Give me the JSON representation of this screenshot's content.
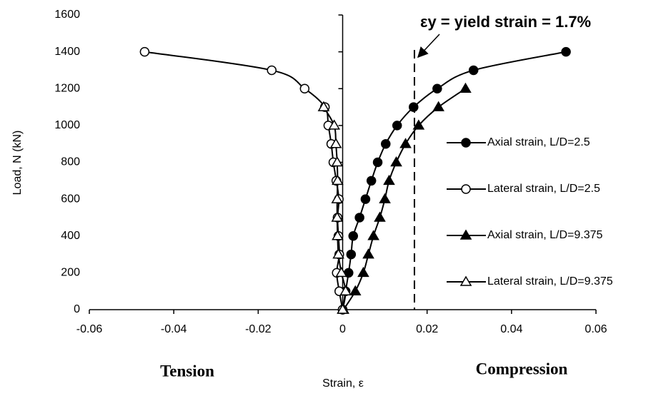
{
  "chart_data": {
    "type": "line",
    "x_label": "Strain, ε",
    "y_label": "Load, N (kN)",
    "annotation": "εy = yield strain = 1.7%",
    "yield_strain": 0.017,
    "left_label": "Tension",
    "right_label": "Compression",
    "xlim": [
      -0.06,
      0.06
    ],
    "xticks": [
      -0.06,
      -0.04,
      -0.02,
      0,
      0.02,
      0.04,
      0.06
    ],
    "ylim": [
      0,
      1600
    ],
    "yticks": [
      0,
      200,
      400,
      600,
      800,
      1000,
      1200,
      1400,
      1600
    ],
    "legend": "right",
    "series": [
      {
        "name": "Axial strain, L/D=2.5",
        "color": "#000000",
        "marker": "circle",
        "filled": true,
        "x": [
          0,
          0.0007,
          0.0014,
          0.002,
          0.0025,
          0.004,
          0.0054,
          0.0068,
          0.0083,
          0.0102,
          0.0129,
          0.0168,
          0.0224,
          0.031,
          0.0529
        ],
        "values": [
          0,
          100,
          200,
          300,
          400,
          500,
          600,
          700,
          800,
          900,
          1000,
          1100,
          1200,
          1300,
          1400
        ]
      },
      {
        "name": "Lateral strain, L/D=2.5",
        "color": "#000000",
        "marker": "circle",
        "filled": false,
        "x": [
          0,
          -0.0008,
          -0.0014,
          -0.0008,
          -0.001,
          -0.0012,
          -0.0009,
          -0.0015,
          -0.0022,
          -0.0027,
          -0.0034,
          -0.0042,
          -0.009,
          -0.0168,
          -0.0469
        ],
        "values": [
          0,
          100,
          200,
          300,
          400,
          500,
          600,
          700,
          800,
          900,
          1000,
          1100,
          1200,
          1300,
          1400
        ]
      },
      {
        "name": "Axial strain, L/D=9.375",
        "color": "#000000",
        "marker": "triangle",
        "filled": true,
        "x": [
          0.0002,
          0.003,
          0.0049,
          0.0061,
          0.0073,
          0.0088,
          0.01,
          0.011,
          0.0127,
          0.0149,
          0.018,
          0.0227,
          0.0291
        ],
        "values": [
          0,
          100,
          200,
          300,
          400,
          500,
          600,
          700,
          800,
          900,
          1000,
          1100,
          1200
        ]
      },
      {
        "name": "Lateral strain, L/D=9.375",
        "color": "#000000",
        "marker": "triangle",
        "filled": false,
        "x": [
          0,
          0.0007,
          -0.0003,
          -0.001,
          -0.0012,
          -0.0013,
          -0.0013,
          -0.0012,
          -0.0013,
          -0.0016,
          -0.002,
          -0.0045
        ],
        "values": [
          0,
          100,
          200,
          300,
          400,
          500,
          600,
          700,
          800,
          900,
          1000,
          1100
        ]
      }
    ]
  }
}
